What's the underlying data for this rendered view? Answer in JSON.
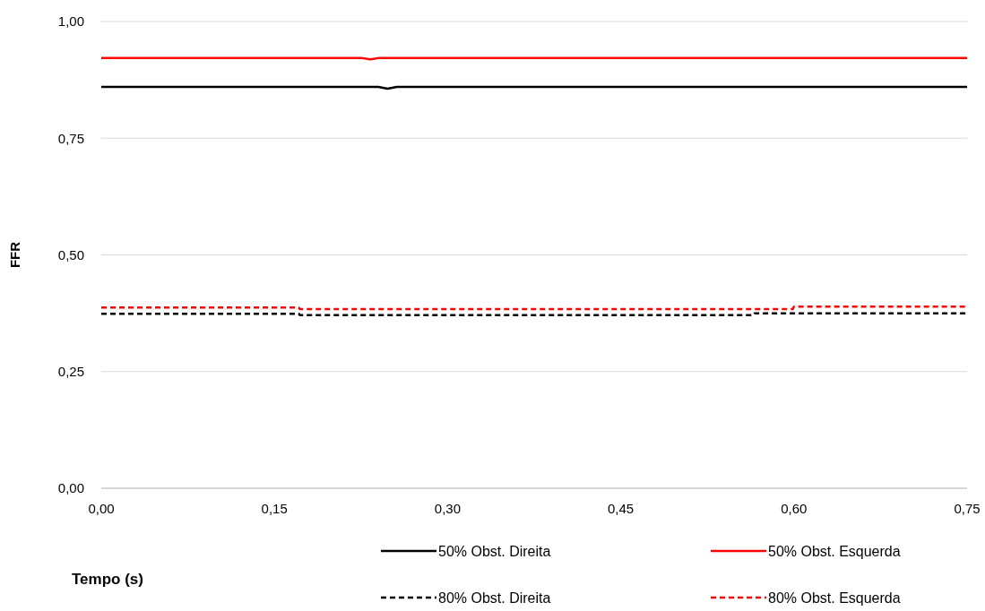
{
  "chart_data": {
    "type": "line",
    "xlabel": "Tempo (s)",
    "ylabel": "FFR",
    "xlim": [
      0,
      0.75
    ],
    "ylim": [
      0,
      1
    ],
    "xticks": [
      {
        "value": 0,
        "label": "0,00"
      },
      {
        "value": 0.15,
        "label": "0,15"
      },
      {
        "value": 0.3,
        "label": "0,30"
      },
      {
        "value": 0.45,
        "label": "0,45"
      },
      {
        "value": 0.6,
        "label": "0,60"
      },
      {
        "value": 0.75,
        "label": "0,75"
      }
    ],
    "yticks": [
      {
        "value": 0,
        "label": "0,00"
      },
      {
        "value": 0.25,
        "label": "0,25"
      },
      {
        "value": 0.5,
        "label": "0,50"
      },
      {
        "value": 0.75,
        "label": "0,75"
      },
      {
        "value": 1,
        "label": "1,00"
      }
    ],
    "grid": "y",
    "legend": "bottom",
    "marker": "none",
    "series": [
      {
        "name": "50% Obst. Direita",
        "color": "#000000",
        "line_style": "solid",
        "x": [
          0,
          0.24,
          0.248,
          0.256,
          0.75
        ],
        "values": [
          0.86,
          0.86,
          0.856,
          0.86,
          0.86
        ]
      },
      {
        "name": "50% Obst. Esquerda",
        "color": "#ff0000",
        "line_style": "solid",
        "x": [
          0,
          0.225,
          0.233,
          0.241,
          0.75
        ],
        "values": [
          0.922,
          0.922,
          0.919,
          0.922,
          0.922
        ]
      },
      {
        "name": "80% Obst. Direita",
        "color": "#000000",
        "line_style": "dashed",
        "x": [
          0,
          0.171,
          0.172,
          0.565,
          0.566,
          0.75
        ],
        "values": [
          0.374,
          0.374,
          0.371,
          0.371,
          0.375,
          0.375
        ]
      },
      {
        "name": "80% Obst. Esquerda",
        "color": "#ff0000",
        "line_style": "dashed",
        "x": [
          0,
          0.171,
          0.172,
          0.599,
          0.6,
          0.75
        ],
        "values": [
          0.387,
          0.387,
          0.384,
          0.384,
          0.389,
          0.389
        ]
      }
    ]
  }
}
